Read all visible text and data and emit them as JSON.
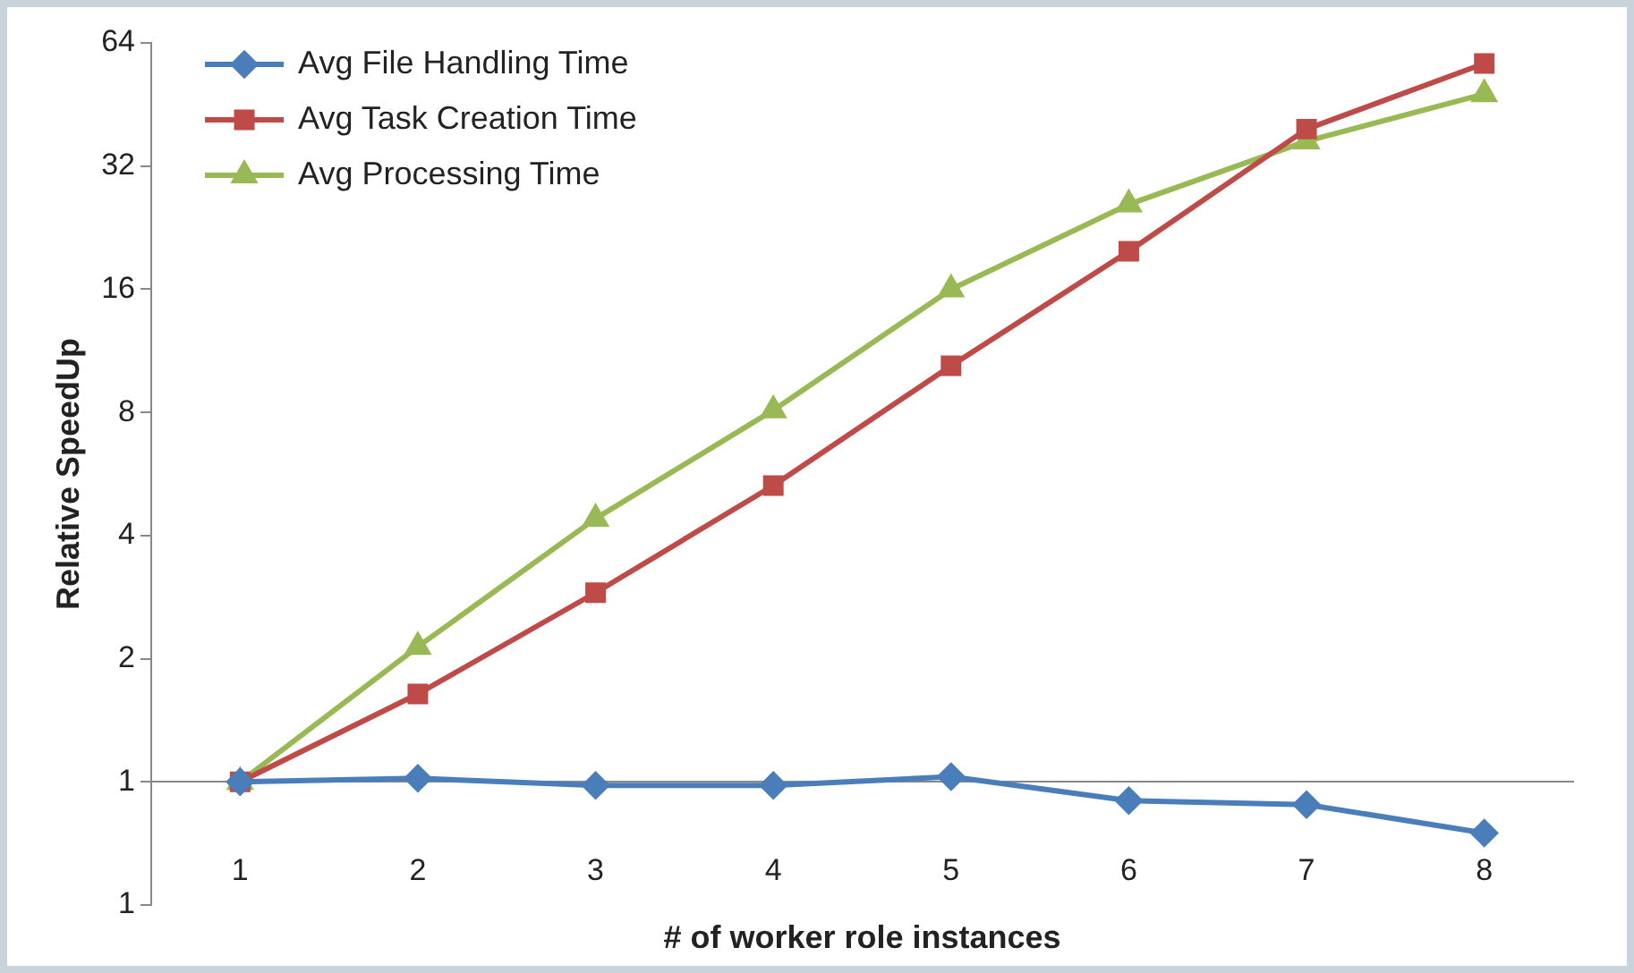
{
  "chart_data": {
    "type": "line",
    "xlabel": "# of worker role instances",
    "ylabel": "Relative SpeedUp",
    "categories": [
      "1",
      "2",
      "3",
      "4",
      "5",
      "6",
      "7",
      "8"
    ],
    "series": [
      {
        "name": "Avg File Handling Time",
        "color": "#4a7ebb",
        "marker": "diamond",
        "values": [
          1,
          1.02,
          0.98,
          0.98,
          1.03,
          0.9,
          0.88,
          0.75
        ]
      },
      {
        "name": "Avg Task Creation Time",
        "color": "#be4b48",
        "marker": "square",
        "values": [
          1,
          1.64,
          2.9,
          5.3,
          10.4,
          19.8,
          39.4,
          57
        ]
      },
      {
        "name": "Avg Processing Time",
        "color": "#98b954",
        "marker": "triangle",
        "values": [
          1,
          2.14,
          4.4,
          8.1,
          16,
          25.8,
          36.8,
          48
        ]
      }
    ],
    "log": "y",
    "ylim": [
      0.5,
      64
    ],
    "yticks": [
      {
        "value": 0.5,
        "label": "1"
      },
      1,
      2,
      4,
      8,
      16,
      32,
      64
    ],
    "grid": false,
    "legend": "top left",
    "line_style": "solid"
  }
}
